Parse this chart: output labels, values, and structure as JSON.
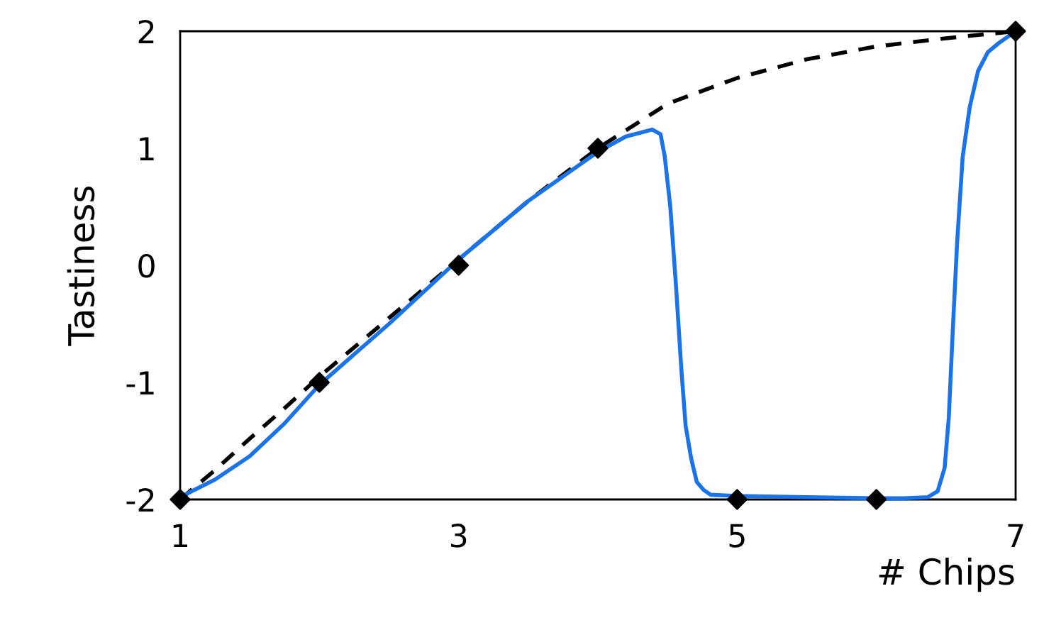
{
  "chart_data": {
    "type": "line",
    "xlabel": "# Chips",
    "ylabel": "Tastiness",
    "xlim": [
      1,
      7
    ],
    "ylim": [
      -2,
      2
    ],
    "xticks": [
      1,
      3,
      5,
      7
    ],
    "yticks": [
      -2,
      -1,
      0,
      1,
      2
    ],
    "grid": false,
    "series": [
      {
        "color": "#000000",
        "line_style": "dashed",
        "marker": "none",
        "x": [
          1,
          1.25,
          1.5,
          1.75,
          2,
          2.5,
          3,
          3.5,
          4,
          4.5,
          5,
          5.5,
          6,
          6.5,
          7
        ],
        "values": [
          -2,
          -1.75,
          -1.48,
          -1.22,
          -0.95,
          -0.45,
          0.05,
          0.55,
          1.0,
          1.38,
          1.6,
          1.76,
          1.87,
          1.94,
          2
        ]
      },
      {
        "color": "#1a73e8",
        "line_style": "solid",
        "marker": "none",
        "x": [
          1,
          1.25,
          1.5,
          1.75,
          2,
          2.5,
          3,
          3.5,
          4,
          4.2,
          4.39,
          4.45,
          4.48,
          4.52,
          4.56,
          4.6,
          4.63,
          4.67,
          4.71,
          4.76,
          4.81,
          5,
          5.5,
          6,
          6.2,
          6.37,
          6.44,
          6.49,
          6.52,
          6.55,
          6.58,
          6.62,
          6.67,
          6.73,
          6.8,
          6.88,
          7
        ],
        "values": [
          -1.98,
          -1.83,
          -1.63,
          -1.35,
          -1.02,
          -0.5,
          0.05,
          0.55,
          0.97,
          1.1,
          1.16,
          1.12,
          0.93,
          0.5,
          -0.16,
          -0.9,
          -1.37,
          -1.65,
          -1.85,
          -1.92,
          -1.96,
          -1.97,
          -1.98,
          -1.99,
          -1.99,
          -1.98,
          -1.93,
          -1.73,
          -1.3,
          -0.52,
          0.2,
          0.93,
          1.35,
          1.66,
          1.82,
          1.9,
          2
        ]
      },
      {
        "type": "scatter",
        "color": "#000000",
        "marker": "diamond",
        "x": [
          1,
          2,
          3,
          4,
          5,
          6,
          7
        ],
        "values": [
          -2,
          -1,
          0,
          1,
          -2,
          -2,
          2
        ]
      }
    ]
  }
}
